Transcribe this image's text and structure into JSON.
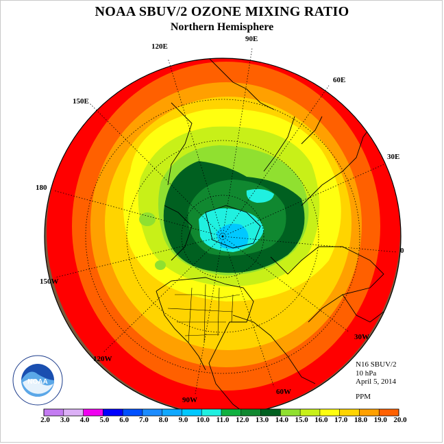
{
  "header": {
    "title": "NOAA SBUV/2 OZONE MIXING RATIO",
    "subtitle": "Northern Hemisphere"
  },
  "longitude_labels": [
    "90E",
    "60E",
    "30E",
    "0",
    "30W",
    "60W",
    "90W",
    "120W",
    "150W",
    "180",
    "150E",
    "120E"
  ],
  "info": {
    "instrument": "N16 SBUV/2",
    "level": "10 hPa",
    "date": "April 5, 2014",
    "units": "PPM"
  },
  "colorbar": {
    "ticks": [
      "2.0",
      "3.0",
      "4.0",
      "5.0",
      "6.0",
      "7.0",
      "8.0",
      "9.0",
      "10.0",
      "11.0",
      "12.0",
      "13.0",
      "14.0",
      "15.0",
      "16.0",
      "17.0",
      "18.0",
      "19.0",
      "20.0"
    ],
    "colors": [
      "#c47cf2",
      "#dcb0f6",
      "#f000f0",
      "#0000ff",
      "#0050ff",
      "#1c8cff",
      "#10a8ff",
      "#00c8ff",
      "#20f0e0",
      "#10b040",
      "#108830",
      "#006020",
      "#90e030",
      "#c8f018",
      "#ffff10",
      "#ffd400",
      "#ffa000",
      "#ff6000",
      "#ff0000",
      "#7a5a3c"
    ]
  },
  "logo": {
    "center_text": "NOAA",
    "ring_text": "NATIONAL OCEANIC AND ATMOSPHERIC ADMINISTRATION · U.S. DEPARTMENT OF COMMERCE"
  },
  "colors": {
    "brown": "#7a5a3c",
    "red": "#ff0000",
    "orange_red": "#ff6000",
    "orange": "#ffa000",
    "gold": "#ffd400",
    "yellow": "#ffff10",
    "yellow_green": "#c8f018",
    "light_green": "#90e030",
    "dark_green": "#006020",
    "mid_green": "#108830",
    "cyan": "#20f0e0",
    "light_blue": "#00c8ff"
  }
}
